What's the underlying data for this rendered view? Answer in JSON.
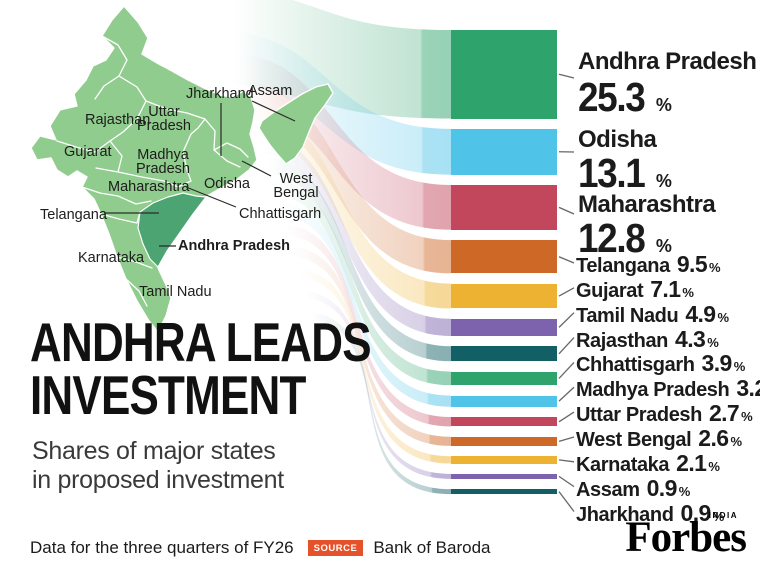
{
  "title": {
    "line1": "ANDHRA LEADS",
    "line2": "INVESTMENT"
  },
  "subtitle": {
    "line1": "Shares of major states",
    "line2": "in proposed investment"
  },
  "footer": {
    "note": "Data for the three quarters of FY26",
    "source_label": "SOURCE",
    "source_value": "Bank of Baroda",
    "brand": "Forbes",
    "brand_region": "INDIA"
  },
  "palette": {
    "map_fill": "#90cc8e",
    "map_highlight": "#4ba471",
    "map_border": "#ffffff",
    "badge": "#e4512a",
    "text": "#1b1b1b",
    "connector": "#666666"
  },
  "map": {
    "labels": [
      "Jharkhand",
      "Assam",
      "Rajasthan",
      "Uttar Pradesh",
      "Gujarat",
      "Madhya Pradesh",
      "Maharashtra",
      "Odisha",
      "West Bengal",
      "Telangana",
      "Chhattisgarh",
      "Karnataka",
      "Andhra Pradesh",
      "Tamil Nadu"
    ],
    "highlighted_state": "Andhra Pradesh"
  },
  "chart_data": {
    "type": "bar",
    "orientation": "horizontal",
    "title": "ANDHRA LEADS INVESTMENT",
    "subtitle": "Shares of major states in proposed investment",
    "unit": "%",
    "categories": [
      "Andhra Pradesh",
      "Odisha",
      "Maharashtra",
      "Telangana",
      "Gujarat",
      "Tamil Nadu",
      "Rajasthan",
      "Chhattisgarh",
      "Madhya Pradesh",
      "Uttar Pradesh",
      "West Bengal",
      "Karnataka",
      "Assam",
      "Jharkhand"
    ],
    "values": [
      25.3,
      13.1,
      12.8,
      9.5,
      7.1,
      4.9,
      4.3,
      3.9,
      3.2,
      2.7,
      2.6,
      2.1,
      0.9,
      0.9
    ],
    "colors": [
      "#2ea36c",
      "#4fc3e8",
      "#c2475d",
      "#ce6827",
      "#edb231",
      "#7d63ae",
      "#135f66",
      "#2ea36c",
      "#4fc3e8",
      "#c2475d",
      "#ce6827",
      "#edb231",
      "#7d63ae",
      "#135f66"
    ],
    "value_labels_shown": true,
    "legend_position": "right-labels",
    "source": "Bank of Baroda",
    "period": "three quarters of FY26"
  }
}
